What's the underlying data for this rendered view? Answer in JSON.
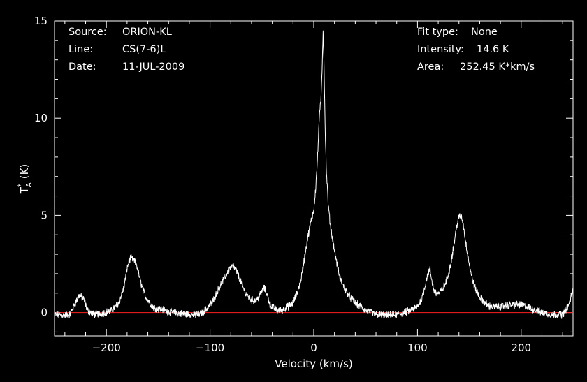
{
  "header_left": {
    "source_label": "Source:",
    "source_value": "ORION-KL",
    "line_label": "Line:",
    "line_value": "CS(7-6)L",
    "date_label": "Date:",
    "date_value": "11-JUL-2009"
  },
  "header_right": {
    "fit_label": "Fit type:",
    "fit_value": "None",
    "intensity_label": "Intensity:",
    "intensity_value": "14.6 K",
    "area_label": "Area:",
    "area_value": "252.45 K*km/s"
  },
  "chart_data": {
    "type": "line",
    "xlabel": "Velocity (km/s)",
    "ylabel": {
      "base": "T",
      "sub": "A",
      "sup": "*",
      "unit": " (K)"
    },
    "xlim": [
      -250,
      250
    ],
    "ylim": [
      -1.2,
      15
    ],
    "xticks": [
      -200,
      -100,
      0,
      100,
      200
    ],
    "yticks": [
      0,
      5,
      10,
      15
    ],
    "xtick_labels": [
      "−200",
      "−100",
      "0",
      "100",
      "200"
    ],
    "ytick_labels": [
      "0",
      "5",
      "10",
      "15"
    ],
    "grid": false,
    "baseline": 0,
    "colors": {
      "background": "#000000",
      "trace": "#ffffff",
      "baseline": "#ff2020",
      "axes": "#ffffff"
    },
    "series": [
      {
        "x": [
          -250,
          -240,
          -235,
          -230,
          -226,
          -222,
          -218,
          -212,
          -205,
          -195,
          -188,
          -183,
          -180,
          -177,
          -174,
          -171,
          -168,
          -165,
          -162,
          -158,
          -154,
          -150,
          -145,
          -140,
          -130,
          -120,
          -110,
          -103,
          -97,
          -92,
          -88,
          -84,
          -81,
          -78,
          -75,
          -72,
          -69,
          -66,
          -63,
          -60,
          -57,
          -54,
          -51,
          -48,
          -45,
          -42,
          -38,
          -34,
          -30,
          -25,
          -20,
          -16,
          -12,
          -9,
          -6,
          -3,
          0,
          2,
          4,
          5,
          6,
          7,
          8,
          9,
          10,
          11,
          12,
          14,
          16,
          18,
          21,
          25,
          30,
          35,
          40,
          45,
          50,
          60,
          70,
          80,
          90,
          100,
          104,
          107,
          109,
          111,
          112,
          114,
          116,
          118,
          121,
          124,
          127,
          130,
          133,
          136,
          138,
          140,
          142,
          144,
          146,
          149,
          152,
          156,
          160,
          165,
          170,
          180,
          190,
          200,
          210,
          220,
          230,
          240,
          246,
          249,
          250
        ],
        "y": [
          -0.1,
          -0.15,
          -0.1,
          0.5,
          0.9,
          0.7,
          0.1,
          -0.1,
          -0.05,
          0.1,
          0.5,
          1.3,
          2.3,
          2.8,
          2.7,
          2.5,
          1.8,
          1.2,
          0.8,
          0.5,
          0.25,
          0.2,
          0.15,
          0.05,
          -0.05,
          -0.1,
          -0.1,
          0.2,
          0.6,
          1.2,
          1.6,
          2.0,
          2.3,
          2.4,
          2.2,
          1.8,
          1.4,
          1.0,
          0.8,
          0.65,
          0.6,
          0.7,
          1.0,
          1.3,
          0.9,
          0.4,
          0.2,
          0.1,
          0.15,
          0.3,
          0.5,
          1.0,
          1.8,
          2.8,
          3.8,
          4.6,
          5.3,
          6.5,
          8.3,
          9.8,
          10.4,
          11.0,
          12.5,
          14.5,
          12.5,
          9.5,
          7.5,
          5.5,
          4.5,
          3.8,
          2.9,
          1.8,
          1.2,
          0.8,
          0.5,
          0.3,
          0.1,
          -0.1,
          -0.15,
          -0.1,
          0.05,
          0.3,
          0.7,
          1.3,
          1.8,
          2.1,
          2.2,
          1.6,
          1.1,
          1.0,
          1.0,
          1.2,
          1.5,
          2.0,
          2.8,
          3.8,
          4.5,
          4.9,
          5.0,
          4.6,
          3.8,
          2.8,
          1.9,
          1.2,
          0.8,
          0.5,
          0.3,
          0.3,
          0.4,
          0.4,
          0.2,
          0.0,
          -0.1,
          -0.1,
          0.4,
          1.0,
          1.1
        ]
      }
    ]
  }
}
